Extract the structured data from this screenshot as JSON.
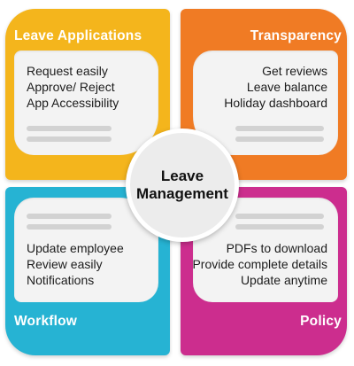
{
  "center": {
    "line1": "Leave",
    "line2": "Management"
  },
  "quadrants": {
    "top_left": {
      "title": "Leave Applications",
      "items": [
        "Request easily",
        "Approve/ Reject",
        "App Accessibility"
      ],
      "color": "#f4b51c"
    },
    "top_right": {
      "title": "Transparency",
      "items": [
        "Get reviews",
        "Leave balance",
        "Holiday dashboard"
      ],
      "color": "#f07b24"
    },
    "bottom_left": {
      "title": "Workflow",
      "items": [
        "Update employee",
        "Review easily",
        "Notifications"
      ],
      "color": "#26b3d3"
    },
    "bottom_right": {
      "title": "Policy",
      "items": [
        "PDFs to download",
        "Provide complete details",
        "Update anytime"
      ],
      "color": "#cc2d8e"
    }
  }
}
